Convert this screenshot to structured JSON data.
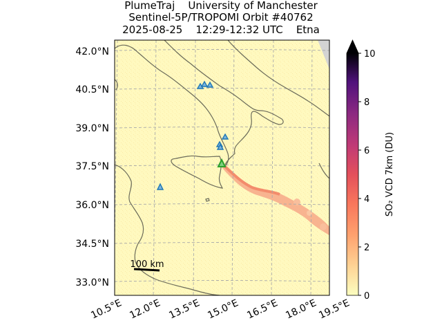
{
  "title": {
    "line1": "PlumeTraj    University of Manchester",
    "line2": "Sentinel-5P/TROPOMI Orbit #40762",
    "line3": "2025-08-25    12:29-12:32 UTC    Etna"
  },
  "map": {
    "lat_labels": [
      "42.0°N",
      "40.5°N",
      "39.0°N",
      "37.5°N",
      "36.0°N",
      "34.5°N",
      "33.0°N"
    ],
    "lon_labels": [
      "10.5°E",
      "12.0°E",
      "13.5°E",
      "15.0°E",
      "16.5°E",
      "18.0°E",
      "19.5°E"
    ],
    "scale_bar_label": "100 km",
    "volcano_marker_color": "#2ca02c",
    "other_volcano_marker_color": "#1f77b4",
    "background_color": "#fff9bf",
    "plume_color": "#f5866a"
  },
  "colorbar": {
    "label": "SO₂ VCD 7km (DU)",
    "ticks": [
      "0",
      "2",
      "4",
      "6",
      "8",
      "10"
    ],
    "min": 0,
    "max": 10,
    "colormap": "magma_r"
  }
}
